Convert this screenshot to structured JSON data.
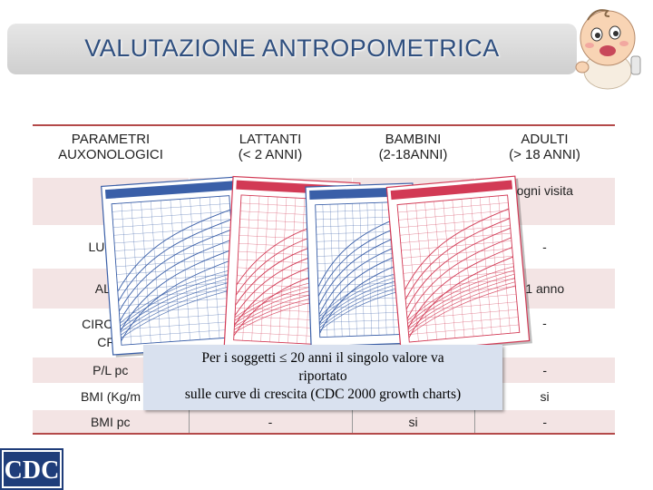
{
  "title": "VALUTAZIONE ANTROPOMETRICA",
  "table": {
    "headers": [
      [
        "PARAMETRI",
        "AUXONOLOGICI"
      ],
      [
        "LATTANTI",
        "(< 2 ANNI)"
      ],
      [
        "BAMBINI",
        "(2-18ANNI)"
      ],
      [
        "ADULTI",
        "(> 18 ANNI)"
      ]
    ],
    "rows": [
      [
        "PESO",
        "",
        "",
        "ogni visita"
      ],
      [
        "LUNGHEZZA",
        "",
        "",
        "-"
      ],
      [
        "ALTEZZA",
        "",
        "",
        "1 anno"
      ],
      [
        "CIRCONFERENZA CRANICA",
        "",
        "",
        "-"
      ],
      [
        "P/L pc",
        "",
        "",
        "-"
      ],
      [
        "BMI (Kg/m²)",
        "-",
        "si",
        "si"
      ],
      [
        "BMI pc",
        "-",
        "si",
        "-"
      ]
    ],
    "visible_row_labels": [
      "PE",
      "LUNGH",
      "ALTE",
      "CIRCONF",
      "CRA",
      "P/L pc",
      "BMI  (Kg/m",
      "BMI pc"
    ]
  },
  "note": {
    "line1": "Per i soggetti ≤ 20  anni il singolo valore va",
    "line2": "riportato",
    "line3": "sulle curve di crescita (CDC 2000 growth charts)"
  },
  "logo": "CDC",
  "colors": {
    "title_text": "#2f4f7f",
    "row_band": "#f3e4e4",
    "rule": "#b44a4a",
    "chart_blue": "#3a5fa8",
    "chart_pink": "#d23a55",
    "note_bg": "#d9e1ef"
  }
}
